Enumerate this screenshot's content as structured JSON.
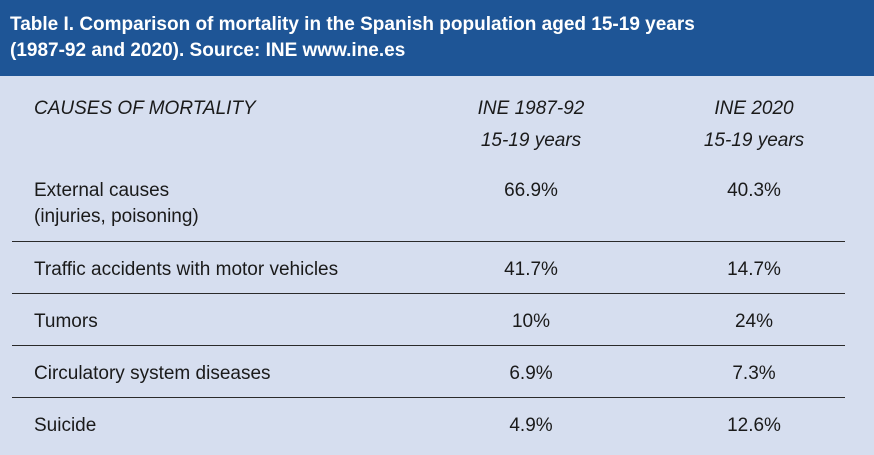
{
  "table": {
    "title_line1": "Table I.  Comparison of mortality in the Spanish population aged 15-19 years",
    "title_line2": "(1987-92 and 2020). Source: INE www.ine.es",
    "columns": {
      "cause": "CAUSES OF MORTALITY",
      "ine1987_line1": "INE 1987-92",
      "ine1987_line2": "15-19 years",
      "ine2020_line1": "INE 2020",
      "ine2020_line2": "15-19 years"
    },
    "rows": [
      {
        "cause_line1": "External causes",
        "cause_line2": "(injuries, poisoning)",
        "v1987": "66.9%",
        "v2020": "40.3%"
      },
      {
        "cause_line1": "Traffic accidents with motor vehicles",
        "v1987": "41.7%",
        "v2020": "14.7%"
      },
      {
        "cause_line1": "Tumors",
        "v1987": "10%",
        "v2020": "24%"
      },
      {
        "cause_line1": "Circulatory system diseases",
        "v1987": "6.9%",
        "v2020": "7.3%"
      },
      {
        "cause_line1": "Suicide",
        "v1987": "4.9%",
        "v2020": "12.6%"
      }
    ]
  }
}
